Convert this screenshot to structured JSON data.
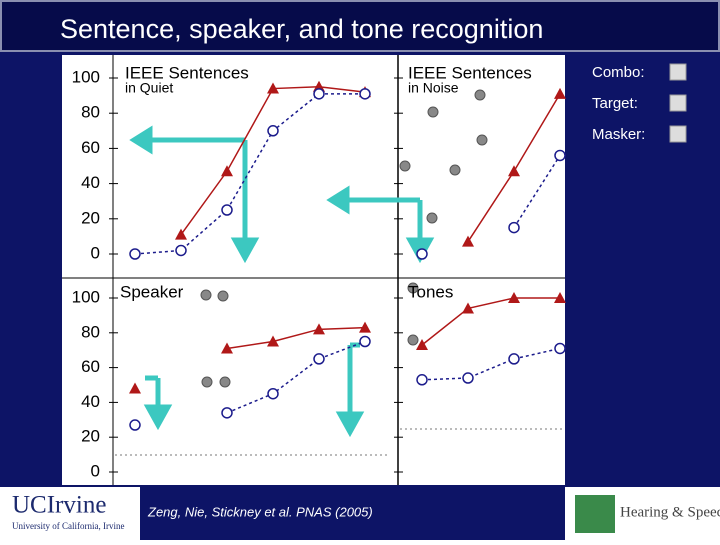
{
  "title": "Sentence, speaker, and tone recognition",
  "legend": {
    "items": [
      "Combo:",
      "Target:",
      "Masker:"
    ]
  },
  "footer": {
    "citation": "Zeng, Nie, Stickney et al. PNAS (2005)",
    "logo_left": "UCIrvine",
    "logo_left_sub": "University of California, Irvine",
    "logo_right": "Hearing & Speech Lab"
  },
  "chart_data": [
    {
      "type": "line",
      "title": "IEEE Sentences",
      "subtitle": "in Quiet",
      "categories": [
        null,
        null,
        null,
        null,
        null,
        null
      ],
      "series": [
        {
          "color": "#b01818",
          "marker": "triangle",
          "dashed": false,
          "values": [
            null,
            11,
            47,
            94,
            95,
            92
          ]
        },
        {
          "color": "#1c1c8c",
          "marker": "circle",
          "dashed": true,
          "values": [
            0,
            2,
            25,
            70,
            91,
            91
          ]
        }
      ],
      "ylim": [
        0,
        100
      ],
      "yticks": [
        0,
        20,
        40,
        60,
        80,
        100
      ],
      "tick_labels": true
    },
    {
      "type": "line",
      "title": "IEEE Sentences",
      "subtitle": "in Noise",
      "categories": [
        null,
        null,
        null,
        null
      ],
      "series": [
        {
          "color": "#b01818",
          "marker": "triangle",
          "dashed": false,
          "values": [
            null,
            7,
            47,
            91
          ]
        },
        {
          "color": "#1c1c8c",
          "marker": "circle",
          "dashed": true,
          "values": [
            0,
            null,
            15,
            56
          ]
        }
      ],
      "ylim": [
        0,
        100
      ],
      "yticks": [
        0,
        20,
        40,
        60,
        80,
        100
      ],
      "tick_labels": false
    },
    {
      "type": "line",
      "title": "Speaker",
      "categories": [
        null,
        null,
        null,
        null,
        null,
        null
      ],
      "series": [
        {
          "color": "#b01818",
          "marker": "triangle",
          "dashed": false,
          "values": [
            48,
            null,
            71,
            75,
            82,
            83
          ]
        },
        {
          "color": "#1c1c8c",
          "marker": "circle",
          "dashed": true,
          "values": [
            27,
            null,
            34,
            45,
            65,
            75
          ]
        }
      ],
      "ylim": [
        0,
        100
      ],
      "yticks": [
        0,
        20,
        40,
        60,
        80,
        100
      ],
      "tick_labels": true
    },
    {
      "type": "line",
      "title": "Tones",
      "categories": [
        null,
        null,
        null,
        null
      ],
      "series": [
        {
          "color": "#b01818",
          "marker": "triangle",
          "dashed": false,
          "values": [
            73,
            94,
            100,
            100
          ]
        },
        {
          "color": "#1c1c8c",
          "marker": "circle",
          "dashed": true,
          "values": [
            53,
            54,
            65,
            71
          ]
        }
      ],
      "ylim": [
        0,
        100
      ],
      "yticks": [
        0,
        20,
        40,
        60,
        80,
        100
      ],
      "tick_labels": false
    }
  ]
}
